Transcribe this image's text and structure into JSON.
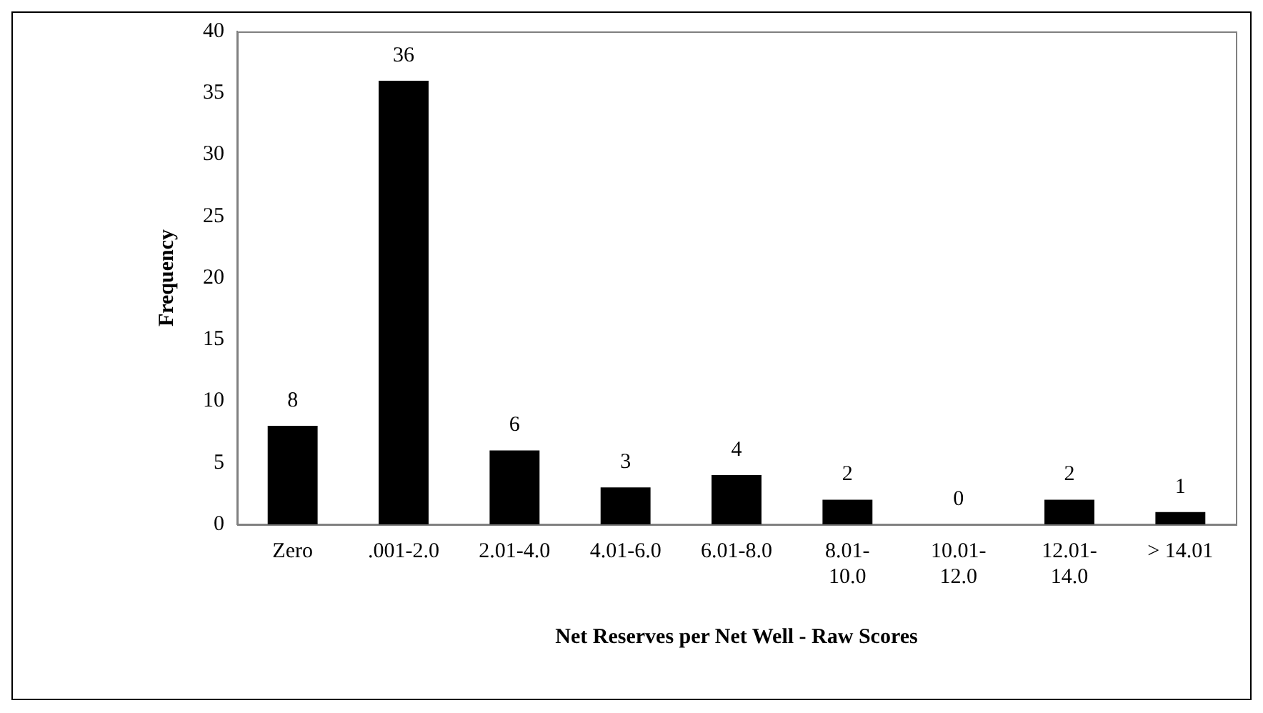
{
  "chart_data": {
    "type": "bar",
    "xlabel": "Net Reserves per Net Well - Raw Scores",
    "ylabel": "Frequency",
    "categories": [
      "Zero",
      ".001-2.0",
      "2.01-4.0",
      "4.01-6.0",
      "6.01-8.0",
      "8.01-10.0",
      "10.01-12.0",
      "12.01-14.0",
      "> 14.01"
    ],
    "values": [
      8,
      36,
      6,
      3,
      4,
      2,
      0,
      2,
      1
    ],
    "color": "#000000",
    "ylim": [
      0,
      40
    ],
    "yticks": [
      0,
      5,
      10,
      15,
      20,
      25,
      30,
      35,
      40
    ],
    "grid": false,
    "legend": false,
    "data_labels": true
  }
}
